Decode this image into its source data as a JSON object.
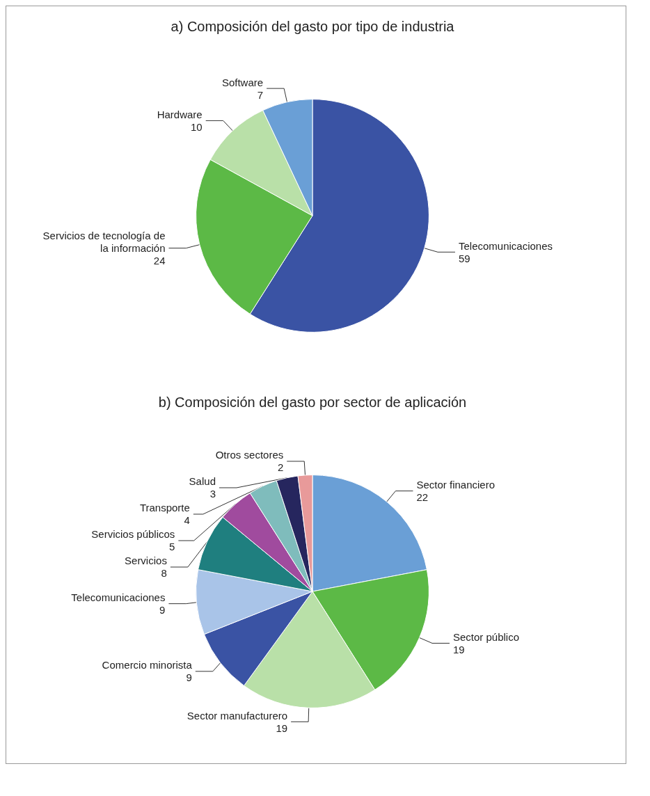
{
  "chart_data": [
    {
      "type": "pie",
      "title": "a) Composición del gasto por tipo de industria",
      "categories": [
        "Telecomunicaciones",
        "Servicios de tecnología de la información",
        "Hardware",
        "Software"
      ],
      "values": [
        59,
        24,
        10,
        7
      ],
      "colors": [
        "#3a53a4",
        "#5cb946",
        "#b9e0a8",
        "#6a9fd6"
      ],
      "data_labels": true
    },
    {
      "type": "pie",
      "title": "b) Composición del gasto por sector de aplicación",
      "categories": [
        "Sector financiero",
        "Sector público",
        "Sector manufacturero",
        "Comercio minorista",
        "Telecomunicaciones",
        "Servicios",
        "Servicios públicos",
        "Transporte",
        "Salud",
        "Otros sectores"
      ],
      "values": [
        22,
        19,
        19,
        9,
        9,
        8,
        5,
        4,
        3,
        2
      ],
      "colors": [
        "#6a9fd6",
        "#5cb946",
        "#b9e0a8",
        "#3a53a4",
        "#a9c4e8",
        "#1f7f7f",
        "#a04b9e",
        "#7fbcbc",
        "#26265e",
        "#e89a9a"
      ],
      "data_labels": true
    }
  ]
}
